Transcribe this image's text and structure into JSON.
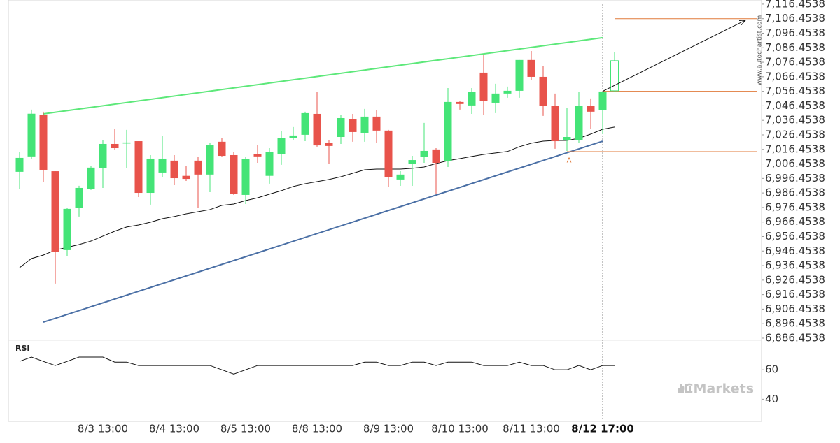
{
  "chart_data": {
    "type": "candlestick",
    "categories": [
      null,
      null,
      null,
      null,
      null,
      null,
      null,
      "8/3 13:00",
      null,
      null,
      null,
      null,
      null,
      "8/4 13:00",
      null,
      null,
      null,
      null,
      null,
      "8/5 13:00",
      null,
      null,
      null,
      null,
      null,
      "8/8 13:00",
      null,
      null,
      null,
      null,
      null,
      "8/9 13:00",
      null,
      null,
      null,
      null,
      null,
      "8/10 13:00",
      null,
      null,
      null,
      null,
      null,
      "8/11 13:00",
      null,
      null,
      null,
      null,
      null,
      "8/12 17:00",
      null
    ],
    "open": [
      7001.0,
      7011.6,
      7040.0,
      7001.4,
      6947.1,
      6976.4,
      6989.4,
      7003.4,
      7020.2,
      7020.7,
      7022.1,
      6986.5,
      7000.5,
      7008.7,
      6998.2,
      7008.7,
      6999.1,
      7021.7,
      7012.5,
      6985.1,
      7013.0,
      6998.2,
      7013.0,
      7024.1,
      7026.5,
      7040.9,
      7020.7,
      7025.0,
      7037.5,
      7027.9,
      7039.0,
      7029.4,
      6995.7,
      7006.3,
      7011.1,
      7016.4,
      7008.2,
      7049.1,
      7046.7,
      7069.3,
      7048.6,
      7054.9,
      7056.8,
      7078.0,
      7066.4,
      7046.2,
      7022.6,
      7022.6,
      7046.2,
      7043.3,
      7056.8
    ],
    "high": [
      7014.4,
      7043.8,
      7042.4,
      7001.4,
      6976.0,
      6991.4,
      7004.8,
      7022.6,
      7030.8,
      7029.9,
      7022.1,
      7012.5,
      7025.5,
      7012.5,
      7004.8,
      7011.1,
      7020.7,
      7024.1,
      7014.4,
      7011.1,
      7019.2,
      7017.3,
      7028.9,
      7031.8,
      7042.4,
      7056.3,
      7023.1,
      7040.0,
      7040.9,
      7044.3,
      7043.3,
      7029.9,
      7001.4,
      7012.0,
      7034.7,
      7017.3,
      7058.7,
      7049.6,
      7058.7,
      7081.3,
      7061.6,
      7059.7,
      7078.0,
      7084.2,
      7073.6,
      7054.9,
      7044.8,
      7055.9,
      7051.5,
      7056.3,
      7083.2
    ],
    "low": [
      6989.4,
      7010.1,
      6994.2,
      6924.0,
      6942.8,
      6970.2,
      6988.5,
      6989.9,
      7015.9,
      7003.4,
      6983.6,
      6978.4,
      6997.6,
      6991.8,
      6994.7,
      6976.0,
      6987.0,
      7011.1,
      6985.1,
      6978.8,
      7007.2,
      6992.8,
      7005.8,
      7022.6,
      7022.1,
      7018.3,
      7006.3,
      7020.2,
      7021.7,
      7021.7,
      7020.7,
      6990.4,
      6991.3,
      6991.3,
      7007.2,
      6985.6,
      7004.3,
      7043.8,
      7040.9,
      7040.4,
      7041.4,
      7052.0,
      7052.0,
      7064.0,
      7039.5,
      7016.9,
      7015.4,
      7020.7,
      7030.3,
      7027.0,
      7056.3
    ],
    "close": [
      7010.6,
      7041.0,
      7002.4,
      6946.1,
      6975.5,
      6989.9,
      7003.9,
      7020.2,
      7017.3,
      7021.2,
      6986.5,
      7010.1,
      7010.1,
      6996.6,
      6996.1,
      6999.1,
      7019.7,
      7012.0,
      6986.0,
      7009.6,
      7011.6,
      7014.9,
      7024.1,
      7026.0,
      7041.4,
      7019.2,
      7018.8,
      7038.0,
      7028.4,
      7039.0,
      7029.4,
      6997.1,
      6999.1,
      7009.1,
      7015.4,
      7007.2,
      7049.1,
      7047.7,
      7055.9,
      7049.6,
      7054.9,
      7056.8,
      7078.0,
      7066.4,
      7046.2,
      7022.1,
      7025.0,
      7046.2,
      7042.4,
      7056.3,
      7077.5
    ],
    "up_color": "#44e477",
    "down_color": "#e8534b",
    "ylim": [
      6885.0,
      7119.3
    ],
    "yticks": [
      {
        "value": 7116.4538,
        "label": "7,116.4538"
      },
      {
        "value": 7106.4538,
        "label": "7,106.4538"
      },
      {
        "value": 7096.4538,
        "label": "7,096.4538"
      },
      {
        "value": 7086.4538,
        "label": "7,086.4538"
      },
      {
        "value": 7076.4538,
        "label": "7,076.4538"
      },
      {
        "value": 7066.4538,
        "label": "7,066.4538"
      },
      {
        "value": 7056.4538,
        "label": "7,056.4538"
      },
      {
        "value": 7046.4538,
        "label": "7,046.4538"
      },
      {
        "value": 7036.4538,
        "label": "7,036.4538"
      },
      {
        "value": 7026.4538,
        "label": "7,026.4538"
      },
      {
        "value": 7016.4538,
        "label": "7,016.4538"
      },
      {
        "value": 7006.4538,
        "label": "7,006.4538"
      },
      {
        "value": 6996.4538,
        "label": "6,996.4538"
      },
      {
        "value": 6986.4538,
        "label": "6,986.4538"
      },
      {
        "value": 6976.4538,
        "label": "6,976.4538"
      },
      {
        "value": 6966.4538,
        "label": "6,966.4538"
      },
      {
        "value": 6956.4538,
        "label": "6,956.4538"
      },
      {
        "value": 6946.4538,
        "label": "6,946.4538"
      },
      {
        "value": 6936.4538,
        "label": "6,936.4538"
      },
      {
        "value": 6926.4538,
        "label": "6,926.4538"
      },
      {
        "value": 6916.4538,
        "label": "6,916.4538"
      },
      {
        "value": 6906.4538,
        "label": "6,906.4538"
      },
      {
        "value": 6896.4538,
        "label": "6,896.4538"
      },
      {
        "value": 6886.4538,
        "label": "6,886.4538"
      }
    ],
    "ma": {
      "color": "#111111",
      "values": [
        6935.0,
        6941.3,
        6943.7,
        6947.1,
        6949.0,
        6950.9,
        6953.3,
        6956.7,
        6960.1,
        6963.0,
        6964.4,
        6966.3,
        6968.7,
        6970.2,
        6972.1,
        6973.5,
        6975.0,
        6977.9,
        6978.8,
        6981.2,
        6983.1,
        6985.6,
        6988.0,
        6990.9,
        6992.8,
        6994.2,
        6995.7,
        6997.6,
        7000.0,
        7002.4,
        7002.9,
        7002.9,
        7002.9,
        7003.4,
        7004.3,
        7006.7,
        7008.7,
        7010.1,
        7011.6,
        7013.0,
        7014.0,
        7015.0,
        7018.3,
        7020.7,
        7022.1,
        7022.6,
        7022.6,
        7024.1,
        7027.0,
        7030.3,
        7031.8
      ]
    },
    "trendlines": [
      {
        "color": "#5de87a",
        "start": {
          "index": 2,
          "value": 7040.9
        },
        "end": {
          "index": 49,
          "value": 7093.4
        }
      },
      {
        "color": "#4a6fa5",
        "start": {
          "index": 2,
          "value": 6897.5
        },
        "end": {
          "index": 49,
          "value": 7022.1
        }
      }
    ],
    "levels": [
      {
        "color": "#e07a3a",
        "index": 49,
        "value": 7056.4538
      },
      {
        "color": "#e07a3a",
        "index": 50,
        "value": 7106.4538
      },
      {
        "color": "#e07a3a",
        "index": 46,
        "value": 7014.9
      }
    ],
    "arrow": {
      "color": "#111111",
      "start": {
        "index": 49,
        "value": 7056.4538
      },
      "end": {
        "index": 61,
        "value": 7105.4
      }
    },
    "annotation": {
      "text": "A",
      "color": "#e07a3a",
      "index": 46,
      "value": 7009.0
    },
    "rsi": {
      "label": "RSI",
      "ylim": [
        25,
        80
      ],
      "yticks": [
        60,
        40
      ],
      "values": [
        65.7,
        68.6,
        65.7,
        62.9,
        65.7,
        68.6,
        68.6,
        68.6,
        65.2,
        65.2,
        62.9,
        62.9,
        62.9,
        62.9,
        62.9,
        62.9,
        62.9,
        60.0,
        57.1,
        60.0,
        62.9,
        62.9,
        62.9,
        62.9,
        62.9,
        62.9,
        62.9,
        62.9,
        62.9,
        65.2,
        65.2,
        62.9,
        62.9,
        65.2,
        65.2,
        62.9,
        65.2,
        65.2,
        65.2,
        62.9,
        62.9,
        62.9,
        65.2,
        62.9,
        62.9,
        60.0,
        60.0,
        62.9,
        60.0,
        62.9,
        62.9
      ]
    },
    "watermark": "www.autochartist.com",
    "logo": "ICMarkets"
  }
}
